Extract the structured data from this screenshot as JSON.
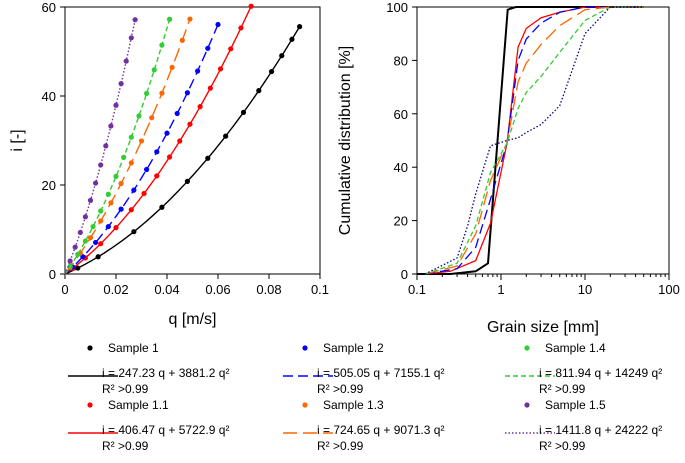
{
  "chart_data": [
    {
      "type": "scatter",
      "xlabel": "q [m/s]",
      "ylabel": "i [-]",
      "xlim": [
        0,
        0.1
      ],
      "ylim": [
        0,
        60
      ],
      "xticks": [
        "0",
        "0.02",
        "0.04",
        "0.06",
        "0.08",
        "0.1"
      ],
      "yticks": [
        "0",
        "20",
        "40",
        "60"
      ],
      "series": [
        {
          "name": "Sample 1",
          "color": "#000000",
          "dash": "solid",
          "a": 247.23,
          "b": 3881.2,
          "x": [
            0.005,
            0.013,
            0.027,
            0.038,
            0.048,
            0.056,
            0.063,
            0.07,
            0.076,
            0.081,
            0.085,
            0.089,
            0.092
          ]
        },
        {
          "name": "Sample 1.1",
          "color": "#ff0000",
          "dash": "solid",
          "a": 406.47,
          "b": 5722.9,
          "x": [
            0.003,
            0.008,
            0.014,
            0.02,
            0.026,
            0.031,
            0.036,
            0.041,
            0.045,
            0.049,
            0.053,
            0.057,
            0.061,
            0.065,
            0.069,
            0.073
          ]
        },
        {
          "name": "Sample 1.2",
          "color": "#0000ff",
          "dash": "dashed",
          "a": 505.05,
          "b": 7155.1,
          "x": [
            0.003,
            0.007,
            0.012,
            0.017,
            0.022,
            0.027,
            0.032,
            0.036,
            0.04,
            0.044,
            0.048,
            0.052,
            0.056,
            0.06
          ]
        },
        {
          "name": "Sample 1.3",
          "color": "#ff6600",
          "dash": "longdash",
          "a": 724.65,
          "b": 9071.3,
          "x": [
            0.002,
            0.006,
            0.01,
            0.014,
            0.018,
            0.022,
            0.026,
            0.03,
            0.034,
            0.038,
            0.042,
            0.046,
            0.049
          ]
        },
        {
          "name": "Sample 1.4",
          "color": "#33cc33",
          "dash": "shortdash",
          "a": 811.94,
          "b": 14249,
          "x": [
            0.002,
            0.005,
            0.008,
            0.011,
            0.014,
            0.017,
            0.02,
            0.023,
            0.026,
            0.029,
            0.032,
            0.035,
            0.038,
            0.041
          ]
        },
        {
          "name": "Sample 1.5",
          "color": "#7030a0",
          "dash": "dotted",
          "a": 1411.8,
          "b": 24222,
          "x": [
            0.002,
            0.004,
            0.006,
            0.008,
            0.01,
            0.012,
            0.014,
            0.016,
            0.018,
            0.02,
            0.022,
            0.024,
            0.026,
            0.0275
          ]
        }
      ]
    },
    {
      "type": "line",
      "xlabel": "Grain size [mm]",
      "ylabel": "Cumulative distribution [%]",
      "xscale": "log",
      "xlim": [
        0.1,
        100
      ],
      "ylim": [
        0,
        100
      ],
      "xticks": [
        "0.1",
        "1",
        "10",
        "100"
      ],
      "yticks": [
        "0",
        "20",
        "40",
        "60",
        "80",
        "100"
      ],
      "series": [
        {
          "name": "Sample 1",
          "color": "#000000",
          "dash": "solid",
          "x": [
            0.1,
            0.25,
            0.5,
            0.7,
            1.2,
            1.5,
            2,
            5,
            10,
            50
          ],
          "y": [
            0,
            0,
            1,
            4,
            99,
            100,
            100,
            100,
            100,
            100
          ]
        },
        {
          "name": "Sample 1.1",
          "color": "#ff0000",
          "dash": "solid",
          "x": [
            0.125,
            0.25,
            0.5,
            0.75,
            1.18,
            1.6,
            2,
            3,
            5,
            10,
            20,
            50
          ],
          "y": [
            0,
            1,
            5,
            19,
            49,
            85,
            92,
            96,
            98,
            100,
            100,
            100
          ]
        },
        {
          "name": "Sample 1.2",
          "color": "#0000ff",
          "dash": "dashed",
          "x": [
            0.125,
            0.3,
            0.5,
            0.75,
            1.18,
            1.6,
            2,
            3,
            5,
            10,
            20,
            50
          ],
          "y": [
            0,
            2,
            10,
            28,
            49,
            80,
            88,
            94,
            98,
            100,
            100,
            100
          ]
        },
        {
          "name": "Sample 1.3",
          "color": "#ff6600",
          "dash": "longdash",
          "x": [
            0.125,
            0.3,
            0.5,
            0.75,
            1.18,
            1.6,
            2,
            3,
            5,
            10,
            20,
            50
          ],
          "y": [
            0,
            3,
            15,
            35,
            49,
            72,
            79,
            86,
            93,
            99,
            100,
            100
          ]
        },
        {
          "name": "Sample 1.4",
          "color": "#33cc33",
          "dash": "shortdash",
          "x": [
            0.125,
            0.3,
            0.5,
            0.75,
            1.18,
            1.6,
            2,
            3,
            5,
            10,
            20,
            50
          ],
          "y": [
            0,
            4,
            18,
            38,
            49,
            62,
            68,
            74,
            83,
            95,
            100,
            100
          ]
        },
        {
          "name": "Sample 1.5",
          "color": "#000088",
          "dash": "dotted",
          "x": [
            0.125,
            0.3,
            0.4,
            0.5,
            0.75,
            1.18,
            1.6,
            2,
            3,
            5,
            10,
            20,
            50
          ],
          "y": [
            0,
            6,
            18,
            30,
            48,
            50,
            51,
            53,
            56,
            63,
            90,
            100,
            100
          ]
        }
      ]
    }
  ],
  "legend": {
    "entries": [
      {
        "sample": "Sample 1",
        "equation": "i = 247.23 q + 3881.2 q²",
        "r2": "R² >0.99"
      },
      {
        "sample": "Sample 1.1",
        "equation": "i = 406.47 q + 5722.9 q²",
        "r2": "R² >0.99"
      },
      {
        "sample": "Sample 1.2",
        "equation": "i = 505.05 q + 7155.1 q²",
        "r2": "R² >0.99"
      },
      {
        "sample": "Sample 1.3",
        "equation": "i = 724.65 q + 9071.3 q²",
        "r2": "R² >0.99"
      },
      {
        "sample": "Sample 1.4",
        "equation": "i = 811.94 q + 14249 q²",
        "r2": "R² >0.99"
      },
      {
        "sample": "Sample 1.5",
        "equation": "i = 1411.8 q + 24222 q²",
        "r2": "R² >0.99"
      }
    ]
  }
}
